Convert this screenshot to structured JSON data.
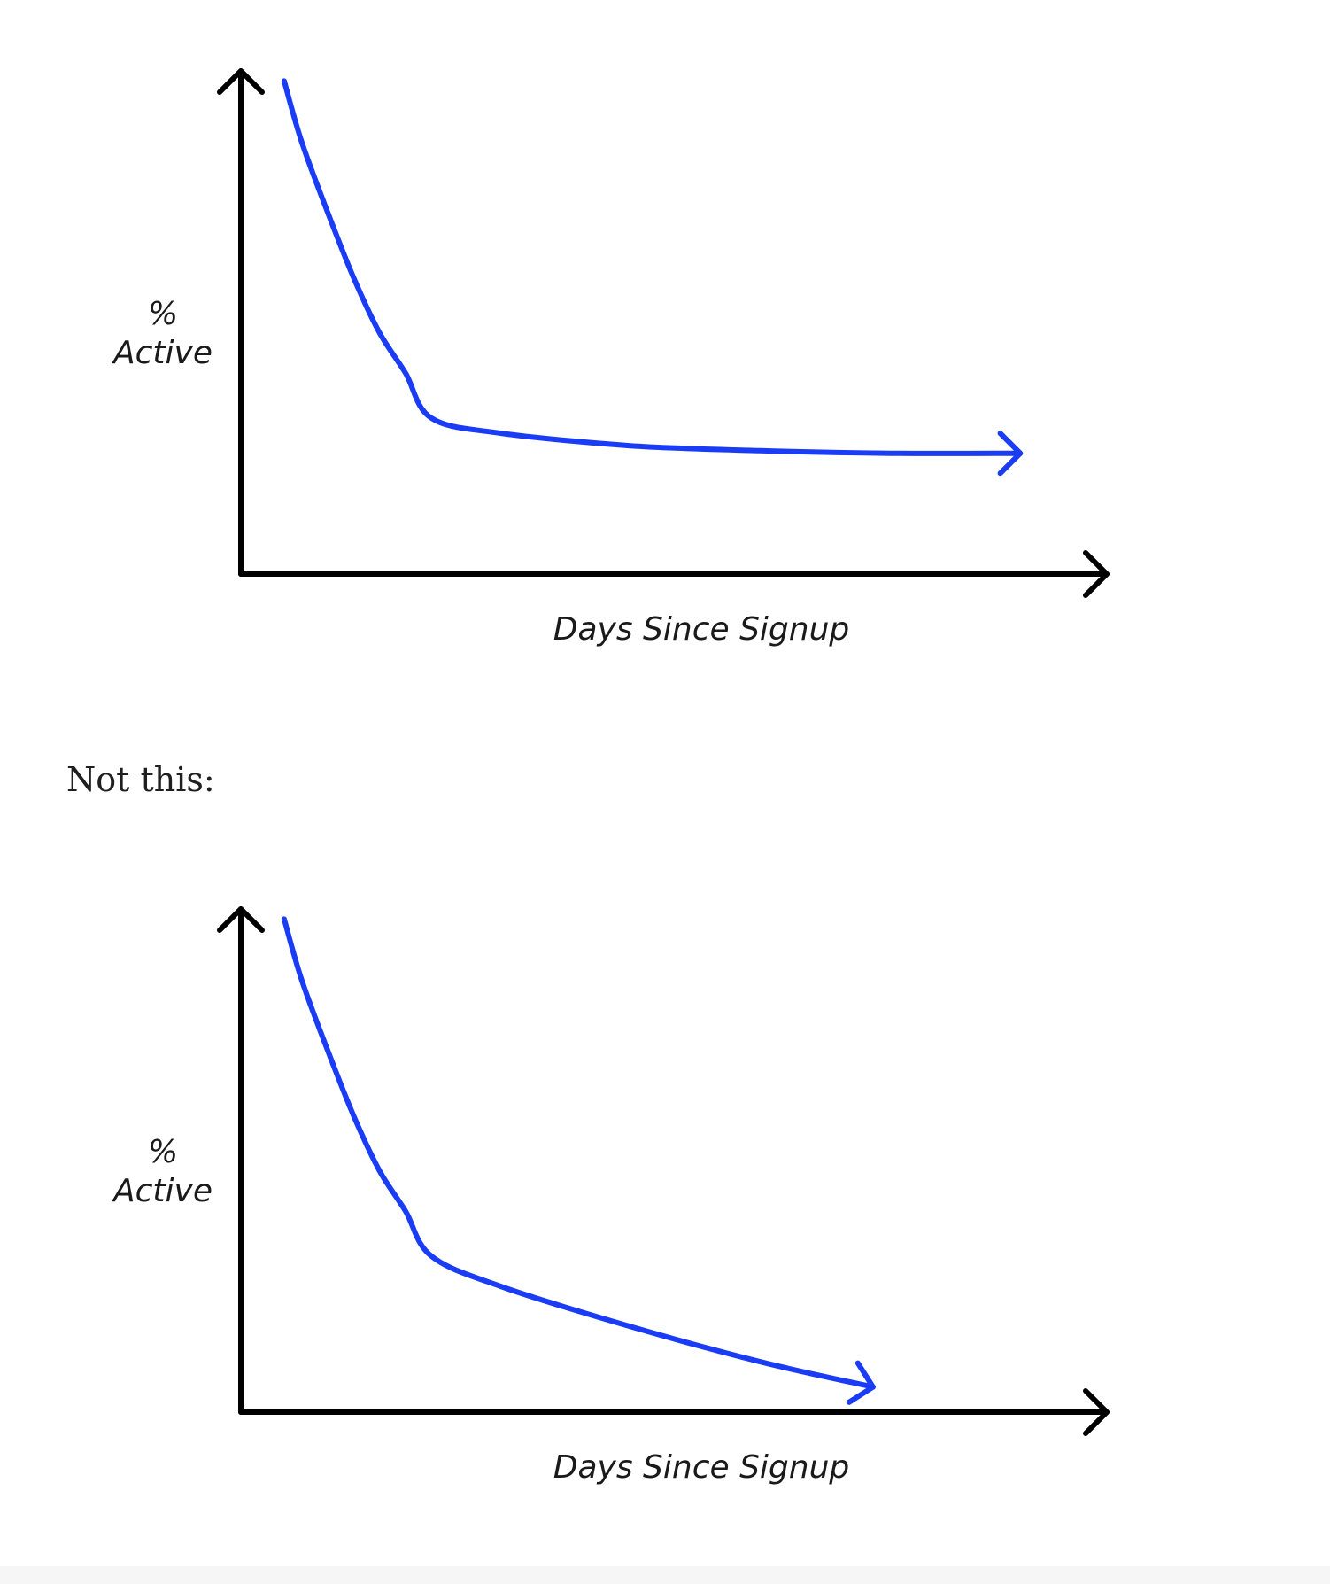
{
  "caption": "Not this:",
  "colors": {
    "curve": "#1a3cf5",
    "axis": "#000000",
    "text": "#1a1a1a",
    "background": "#ffffff"
  },
  "chart_data": [
    {
      "type": "line",
      "xlabel": "Days Since Signup",
      "ylabel_line1": "%",
      "ylabel_line2": "Active",
      "ticks": "none",
      "grid": false,
      "xlim": [
        0,
        100
      ],
      "ylim": [
        0,
        100
      ],
      "series": [
        {
          "color": "#1a3cf5",
          "end_arrow": true,
          "x": [
            5,
            7,
            10,
            13,
            16,
            19,
            22,
            30,
            45,
            60,
            75,
            90
          ],
          "y": [
            98,
            86,
            72,
            59,
            48,
            40,
            31,
            28,
            25.5,
            24.5,
            24,
            24
          ]
        }
      ]
    },
    {
      "type": "line",
      "xlabel": "Days Since Signup",
      "ylabel_line1": "%",
      "ylabel_line2": "Active",
      "ticks": "none",
      "grid": false,
      "xlim": [
        0,
        100
      ],
      "ylim": [
        0,
        100
      ],
      "series": [
        {
          "color": "#1a3cf5",
          "end_arrow": true,
          "x": [
            5,
            7,
            10,
            13,
            16,
            19,
            22,
            30,
            45,
            60,
            73
          ],
          "y": [
            98,
            86,
            72,
            59,
            48,
            40,
            31,
            25,
            17,
            10,
            5
          ]
        }
      ]
    }
  ]
}
